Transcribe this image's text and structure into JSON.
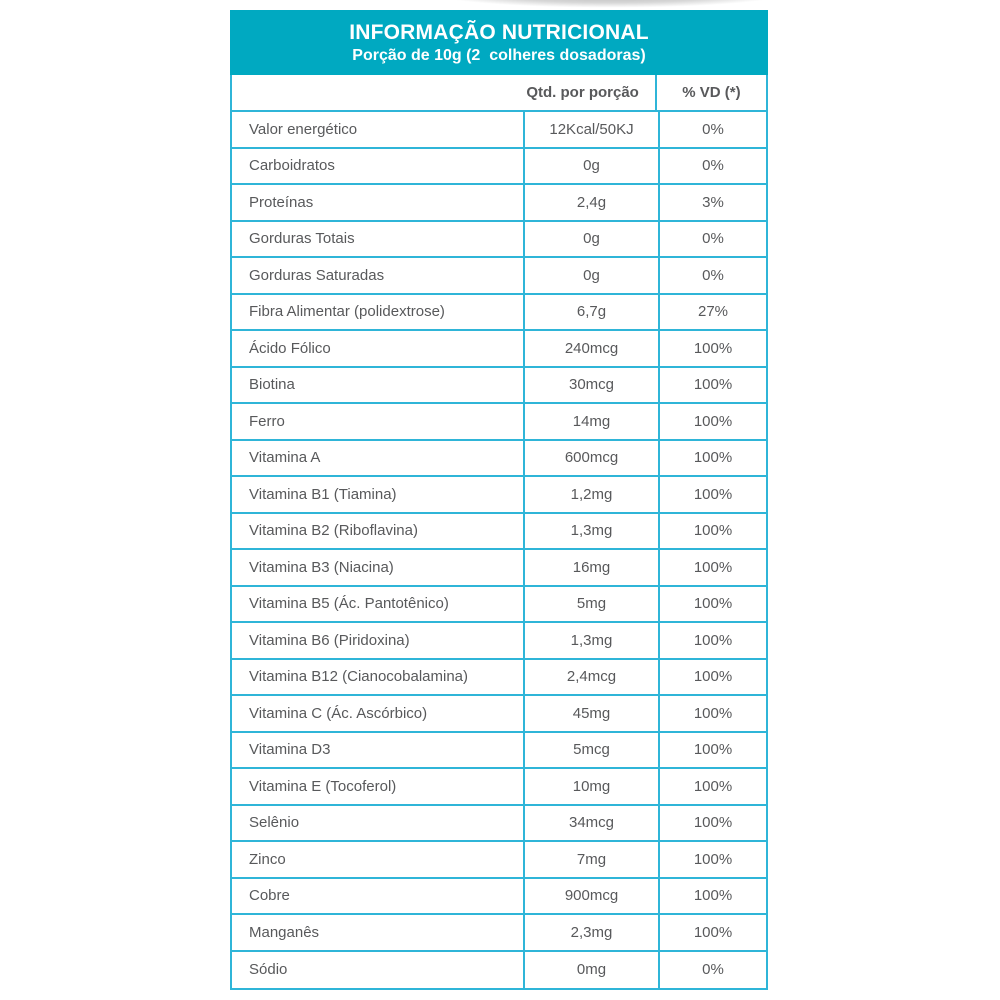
{
  "header": {
    "title": "INFORMAÇÃO NUTRICIONAL",
    "subtitle": "Porção de 10g (2  colheres dosadoras)"
  },
  "columns": {
    "qty_label": "Qtd. por porção",
    "vd_label": "% VD (*)"
  },
  "rows": [
    {
      "name": "Valor energético",
      "qty": "12Kcal/50KJ",
      "vd": "0%"
    },
    {
      "name": "Carboidratos",
      "qty": "0g",
      "vd": "0%"
    },
    {
      "name": "Proteínas",
      "qty": "2,4g",
      "vd": "3%"
    },
    {
      "name": "Gorduras Totais",
      "qty": "0g",
      "vd": "0%"
    },
    {
      "name": "Gorduras Saturadas",
      "qty": "0g",
      "vd": "0%"
    },
    {
      "name": "Fibra Alimentar (polidextrose)",
      "qty": "6,7g",
      "vd": "27%"
    },
    {
      "name": "Ácido Fólico",
      "qty": "240mcg",
      "vd": "100%"
    },
    {
      "name": "Biotina",
      "qty": "30mcg",
      "vd": "100%"
    },
    {
      "name": "Ferro",
      "qty": "14mg",
      "vd": "100%"
    },
    {
      "name": "Vitamina A",
      "qty": "600mcg",
      "vd": "100%"
    },
    {
      "name": "Vitamina B1 (Tiamina)",
      "qty": "1,2mg",
      "vd": "100%"
    },
    {
      "name": "Vitamina B2 (Riboflavina)",
      "qty": "1,3mg",
      "vd": "100%"
    },
    {
      "name": "Vitamina B3 (Niacina)",
      "qty": "16mg",
      "vd": "100%"
    },
    {
      "name": "Vitamina B5 (Ác. Pantotênico)",
      "qty": "5mg",
      "vd": "100%"
    },
    {
      "name": "Vitamina B6 (Piridoxina)",
      "qty": "1,3mg",
      "vd": "100%"
    },
    {
      "name": "Vitamina B12 (Cianocobalamina)",
      "qty": "2,4mcg",
      "vd": "100%"
    },
    {
      "name": "Vitamina C (Ác. Ascórbico)",
      "qty": "45mg",
      "vd": "100%"
    },
    {
      "name": "Vitamina D3",
      "qty": "5mcg",
      "vd": "100%"
    },
    {
      "name": "Vitamina E (Tocoferol)",
      "qty": "10mg",
      "vd": "100%"
    },
    {
      "name": "Selênio",
      "qty": "34mcg",
      "vd": "100%"
    },
    {
      "name": "Zinco",
      "qty": "7mg",
      "vd": "100%"
    },
    {
      "name": "Cobre",
      "qty": "900mcg",
      "vd": "100%"
    },
    {
      "name": "Manganês",
      "qty": "2,3mg",
      "vd": "100%"
    },
    {
      "name": "Sódio",
      "qty": "0mg",
      "vd": "0%"
    }
  ],
  "colors": {
    "header_bg": "#00a9c1",
    "table_border": "#2fb5d8",
    "text": "#58595b",
    "header_text": "#ffffff"
  }
}
